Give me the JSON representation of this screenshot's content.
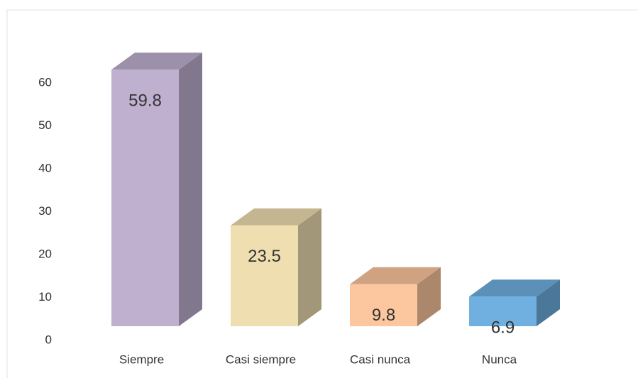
{
  "chart_data": {
    "type": "bar3d",
    "categories": [
      "Siempre",
      "Casi siempre",
      "Casi nunca",
      "Nunca"
    ],
    "values": [
      59.8,
      23.5,
      9.8,
      6.9
    ],
    "colors": [
      "#bfb0d0",
      "#eedeb0",
      "#fcc79e",
      "#6fb0e0"
    ],
    "ylim": [
      0,
      60
    ],
    "yticks": [
      0,
      10,
      20,
      30,
      40,
      50,
      60
    ],
    "grid": false
  }
}
